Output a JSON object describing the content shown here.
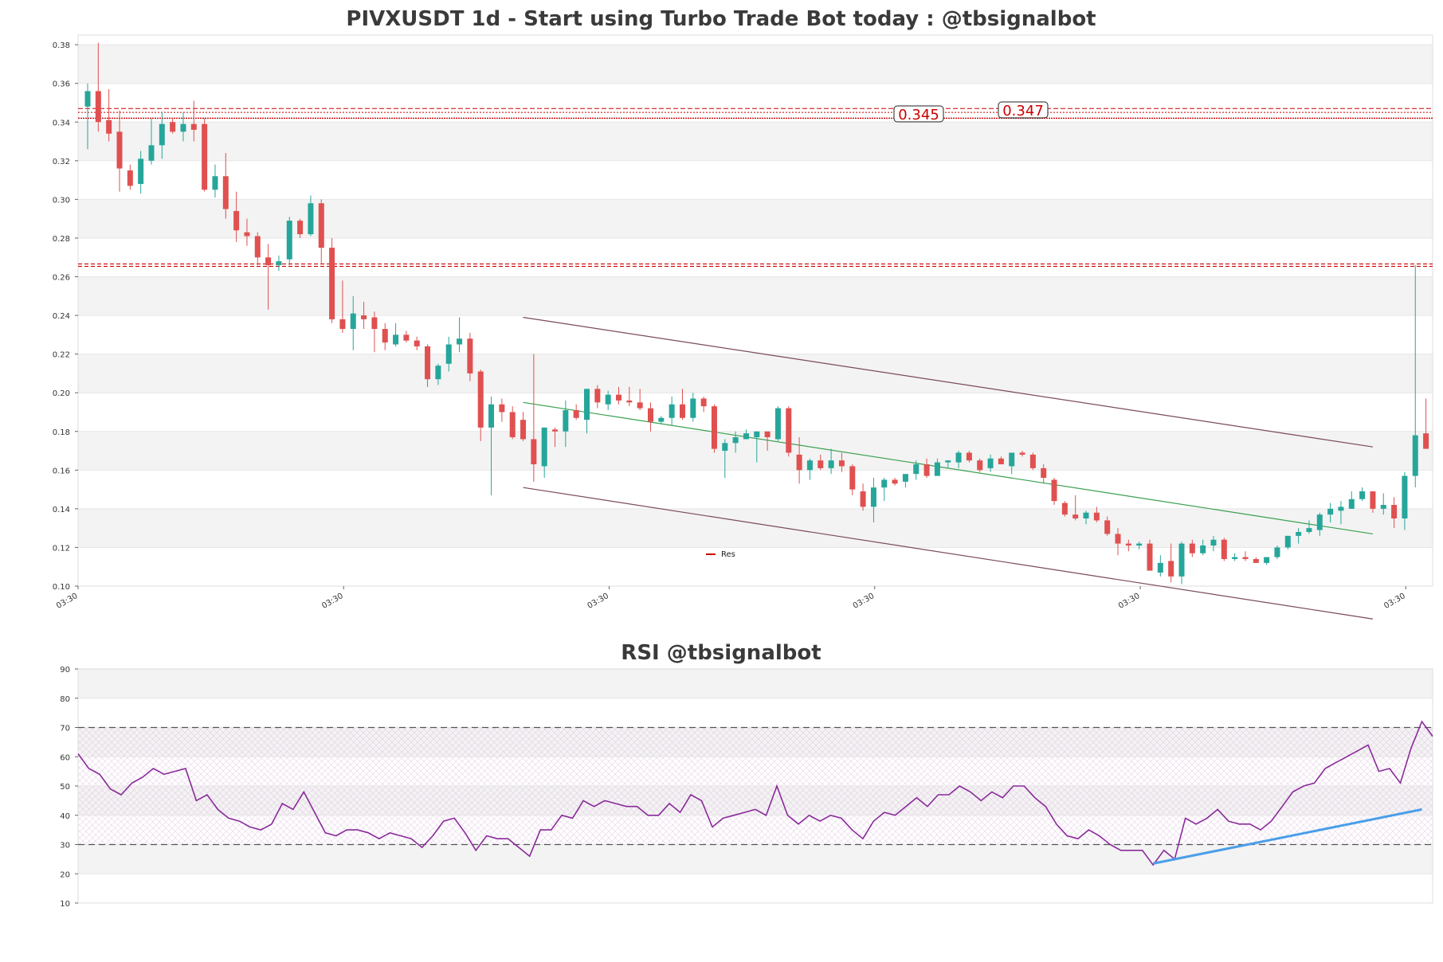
{
  "chart_data": [
    {
      "type": "candlestick",
      "title": "PIVXUSDT 1d - Start using Turbo Trade Bot today : @tbsignalbot",
      "ylim": [
        0.1,
        0.385
      ],
      "y_ticks": [
        "0.10",
        "0.12",
        "0.14",
        "0.16",
        "0.18",
        "0.20",
        "0.22",
        "0.24",
        "0.26",
        "0.28",
        "0.30",
        "0.32",
        "0.34",
        "0.36",
        "0.38"
      ],
      "x_ticks": [
        "03:30",
        "03:30",
        "03:30",
        "03:30",
        "03:30",
        "03:30"
      ],
      "legend": [
        {
          "label": "Res",
          "color": "#cc0000"
        }
      ],
      "colors": {
        "up": "#26a69a",
        "down": "#e05050",
        "resistance": "#cc0000",
        "channel": "#7a4a5a",
        "midline": "#3aa050",
        "band": "#f3f3f3"
      },
      "levels": [
        {
          "value": 0.345,
          "label": "0.345"
        },
        {
          "value": 0.347,
          "label": "0.347"
        },
        {
          "value": 0.266,
          "label": ""
        }
      ],
      "channel": {
        "upper": [
          [
            41,
            0.239
          ],
          [
            121,
            0.172
          ]
        ],
        "lower": [
          [
            41,
            0.151
          ],
          [
            121,
            0.083
          ]
        ],
        "mid": [
          [
            41,
            0.195
          ],
          [
            121,
            0.127
          ]
        ]
      },
      "ohlc": [
        [
          0.348,
          0.36,
          0.326,
          0.356
        ],
        [
          0.356,
          0.381,
          0.335,
          0.34
        ],
        [
          0.341,
          0.357,
          0.33,
          0.334
        ],
        [
          0.335,
          0.346,
          0.304,
          0.316
        ],
        [
          0.315,
          0.318,
          0.305,
          0.307
        ],
        [
          0.308,
          0.325,
          0.303,
          0.321
        ],
        [
          0.32,
          0.342,
          0.318,
          0.328
        ],
        [
          0.328,
          0.345,
          0.321,
          0.339
        ],
        [
          0.34,
          0.342,
          0.334,
          0.335
        ],
        [
          0.335,
          0.345,
          0.33,
          0.339
        ],
        [
          0.339,
          0.351,
          0.33,
          0.336
        ],
        [
          0.339,
          0.342,
          0.304,
          0.305
        ],
        [
          0.305,
          0.318,
          0.301,
          0.312
        ],
        [
          0.312,
          0.324,
          0.29,
          0.295
        ],
        [
          0.294,
          0.304,
          0.278,
          0.284
        ],
        [
          0.283,
          0.29,
          0.276,
          0.281
        ],
        [
          0.281,
          0.283,
          0.266,
          0.27
        ],
        [
          0.27,
          0.277,
          0.243,
          0.266
        ],
        [
          0.266,
          0.271,
          0.263,
          0.268
        ],
        [
          0.269,
          0.291,
          0.266,
          0.289
        ],
        [
          0.289,
          0.29,
          0.28,
          0.282
        ],
        [
          0.282,
          0.302,
          0.281,
          0.298
        ],
        [
          0.298,
          0.3,
          0.267,
          0.275
        ],
        [
          0.275,
          0.28,
          0.236,
          0.238
        ],
        [
          0.238,
          0.258,
          0.231,
          0.233
        ],
        [
          0.233,
          0.25,
          0.222,
          0.241
        ],
        [
          0.24,
          0.247,
          0.233,
          0.238
        ],
        [
          0.239,
          0.242,
          0.221,
          0.233
        ],
        [
          0.233,
          0.236,
          0.222,
          0.226
        ],
        [
          0.225,
          0.236,
          0.224,
          0.23
        ],
        [
          0.23,
          0.232,
          0.226,
          0.227
        ],
        [
          0.227,
          0.229,
          0.222,
          0.224
        ],
        [
          0.224,
          0.225,
          0.203,
          0.207
        ],
        [
          0.207,
          0.215,
          0.204,
          0.214
        ],
        [
          0.215,
          0.229,
          0.211,
          0.225
        ],
        [
          0.225,
          0.239,
          0.221,
          0.228
        ],
        [
          0.228,
          0.231,
          0.206,
          0.21
        ],
        [
          0.211,
          0.212,
          0.175,
          0.182
        ],
        [
          0.182,
          0.198,
          0.147,
          0.194
        ],
        [
          0.194,
          0.197,
          0.185,
          0.19
        ],
        [
          0.19,
          0.193,
          0.176,
          0.177
        ],
        [
          0.186,
          0.19,
          0.175,
          0.176
        ],
        [
          0.176,
          0.22,
          0.154,
          0.163
        ],
        [
          0.162,
          0.182,
          0.156,
          0.182
        ],
        [
          0.181,
          0.182,
          0.172,
          0.18
        ],
        [
          0.18,
          0.196,
          0.172,
          0.191
        ],
        [
          0.191,
          0.194,
          0.186,
          0.187
        ],
        [
          0.186,
          0.202,
          0.179,
          0.202
        ],
        [
          0.202,
          0.204,
          0.192,
          0.195
        ],
        [
          0.194,
          0.201,
          0.191,
          0.199
        ],
        [
          0.199,
          0.203,
          0.194,
          0.196
        ],
        [
          0.196,
          0.203,
          0.193,
          0.195
        ],
        [
          0.195,
          0.202,
          0.191,
          0.192
        ],
        [
          0.192,
          0.195,
          0.18,
          0.185
        ],
        [
          0.185,
          0.188,
          0.184,
          0.187
        ],
        [
          0.187,
          0.198,
          0.183,
          0.194
        ],
        [
          0.194,
          0.202,
          0.186,
          0.187
        ],
        [
          0.187,
          0.2,
          0.185,
          0.197
        ],
        [
          0.197,
          0.198,
          0.19,
          0.193
        ],
        [
          0.193,
          0.194,
          0.169,
          0.171
        ],
        [
          0.17,
          0.176,
          0.156,
          0.174
        ],
        [
          0.174,
          0.18,
          0.169,
          0.177
        ],
        [
          0.176,
          0.181,
          0.176,
          0.179
        ],
        [
          0.177,
          0.18,
          0.164,
          0.18
        ],
        [
          0.18,
          0.178,
          0.17,
          0.177
        ],
        [
          0.176,
          0.193,
          0.175,
          0.192
        ],
        [
          0.192,
          0.193,
          0.167,
          0.169
        ],
        [
          0.168,
          0.177,
          0.153,
          0.16
        ],
        [
          0.16,
          0.166,
          0.155,
          0.165
        ],
        [
          0.165,
          0.168,
          0.16,
          0.161
        ],
        [
          0.161,
          0.171,
          0.158,
          0.165
        ],
        [
          0.165,
          0.169,
          0.159,
          0.162
        ],
        [
          0.162,
          0.163,
          0.147,
          0.15
        ],
        [
          0.149,
          0.153,
          0.139,
          0.141
        ],
        [
          0.141,
          0.156,
          0.133,
          0.151
        ],
        [
          0.151,
          0.156,
          0.144,
          0.155
        ],
        [
          0.155,
          0.156,
          0.152,
          0.153
        ],
        [
          0.154,
          0.157,
          0.151,
          0.158
        ],
        [
          0.158,
          0.165,
          0.155,
          0.163
        ],
        [
          0.163,
          0.166,
          0.156,
          0.157
        ],
        [
          0.157,
          0.166,
          0.157,
          0.164
        ],
        [
          0.164,
          0.165,
          0.161,
          0.165
        ],
        [
          0.164,
          0.17,
          0.161,
          0.169
        ],
        [
          0.169,
          0.17,
          0.164,
          0.165
        ],
        [
          0.165,
          0.166,
          0.159,
          0.16
        ],
        [
          0.161,
          0.168,
          0.159,
          0.166
        ],
        [
          0.166,
          0.167,
          0.163,
          0.163
        ],
        [
          0.162,
          0.169,
          0.158,
          0.169
        ],
        [
          0.169,
          0.17,
          0.167,
          0.168
        ],
        [
          0.168,
          0.169,
          0.16,
          0.161
        ],
        [
          0.161,
          0.163,
          0.153,
          0.156
        ],
        [
          0.155,
          0.156,
          0.142,
          0.144
        ],
        [
          0.143,
          0.144,
          0.136,
          0.137
        ],
        [
          0.137,
          0.147,
          0.134,
          0.135
        ],
        [
          0.135,
          0.139,
          0.132,
          0.138
        ],
        [
          0.138,
          0.141,
          0.133,
          0.134
        ],
        [
          0.134,
          0.136,
          0.126,
          0.127
        ],
        [
          0.127,
          0.13,
          0.116,
          0.122
        ],
        [
          0.122,
          0.124,
          0.118,
          0.121
        ],
        [
          0.121,
          0.123,
          0.119,
          0.122
        ],
        [
          0.122,
          0.124,
          0.11,
          0.108
        ],
        [
          0.107,
          0.116,
          0.105,
          0.112
        ],
        [
          0.113,
          0.122,
          0.102,
          0.105
        ],
        [
          0.105,
          0.123,
          0.101,
          0.122
        ],
        [
          0.122,
          0.124,
          0.115,
          0.117
        ],
        [
          0.117,
          0.124,
          0.116,
          0.121
        ],
        [
          0.121,
          0.126,
          0.118,
          0.124
        ],
        [
          0.124,
          0.125,
          0.113,
          0.114
        ],
        [
          0.114,
          0.117,
          0.113,
          0.115
        ],
        [
          0.115,
          0.118,
          0.113,
          0.114
        ],
        [
          0.114,
          0.115,
          0.112,
          0.112
        ],
        [
          0.112,
          0.115,
          0.111,
          0.115
        ],
        [
          0.115,
          0.121,
          0.114,
          0.12
        ],
        [
          0.12,
          0.126,
          0.119,
          0.126
        ],
        [
          0.126,
          0.13,
          0.122,
          0.128
        ],
        [
          0.128,
          0.134,
          0.127,
          0.13
        ],
        [
          0.129,
          0.138,
          0.126,
          0.137
        ],
        [
          0.137,
          0.143,
          0.133,
          0.14
        ],
        [
          0.139,
          0.144,
          0.132,
          0.141
        ],
        [
          0.14,
          0.149,
          0.14,
          0.145
        ],
        [
          0.145,
          0.151,
          0.144,
          0.149
        ],
        [
          0.149,
          0.149,
          0.138,
          0.14
        ],
        [
          0.14,
          0.148,
          0.137,
          0.142
        ],
        [
          0.142,
          0.146,
          0.13,
          0.135
        ],
        [
          0.135,
          0.159,
          0.129,
          0.157
        ],
        [
          0.157,
          0.266,
          0.151,
          0.178
        ],
        [
          0.179,
          0.197,
          0.172,
          0.171
        ]
      ]
    },
    {
      "type": "line",
      "title": "RSI @tbsignalbot",
      "ylim": [
        10,
        90
      ],
      "y_ticks": [
        "10",
        "20",
        "30",
        "40",
        "50",
        "60",
        "70",
        "80",
        "90"
      ],
      "reference_lines": [
        30,
        70
      ],
      "colors": {
        "rsi": "#8a2a9a",
        "trend": "#4a9ee8",
        "band": "#f3f3f3",
        "hatch": "#d9b8d9"
      },
      "trendline": [
        [
          100,
          23.5
        ],
        [
          125,
          42
        ]
      ],
      "values": [
        61,
        56,
        54,
        49,
        47,
        51,
        53,
        56,
        54,
        55,
        56,
        45,
        47,
        42,
        39,
        38,
        36,
        35,
        37,
        44,
        42,
        48,
        41,
        34,
        33,
        35,
        35,
        34,
        32,
        34,
        33,
        32,
        29,
        33,
        38,
        39,
        34,
        28,
        33,
        32,
        32,
        29,
        26,
        35,
        35,
        40,
        39,
        45,
        43,
        45,
        44,
        43,
        43,
        40,
        40,
        44,
        41,
        47,
        45,
        36,
        39,
        40,
        41,
        42,
        40,
        50,
        40,
        37,
        40,
        38,
        40,
        39,
        35,
        32,
        38,
        41,
        40,
        43,
        46,
        43,
        47,
        47,
        50,
        48,
        45,
        48,
        46,
        50,
        50,
        46,
        43,
        37,
        33,
        32,
        35,
        33,
        30,
        28,
        28,
        28,
        23,
        28,
        25,
        39,
        37,
        39,
        42,
        38,
        37,
        37,
        35,
        38,
        43,
        48,
        50,
        51,
        56,
        58,
        60,
        62,
        64,
        55,
        56,
        51,
        63,
        72,
        67
      ]
    }
  ]
}
